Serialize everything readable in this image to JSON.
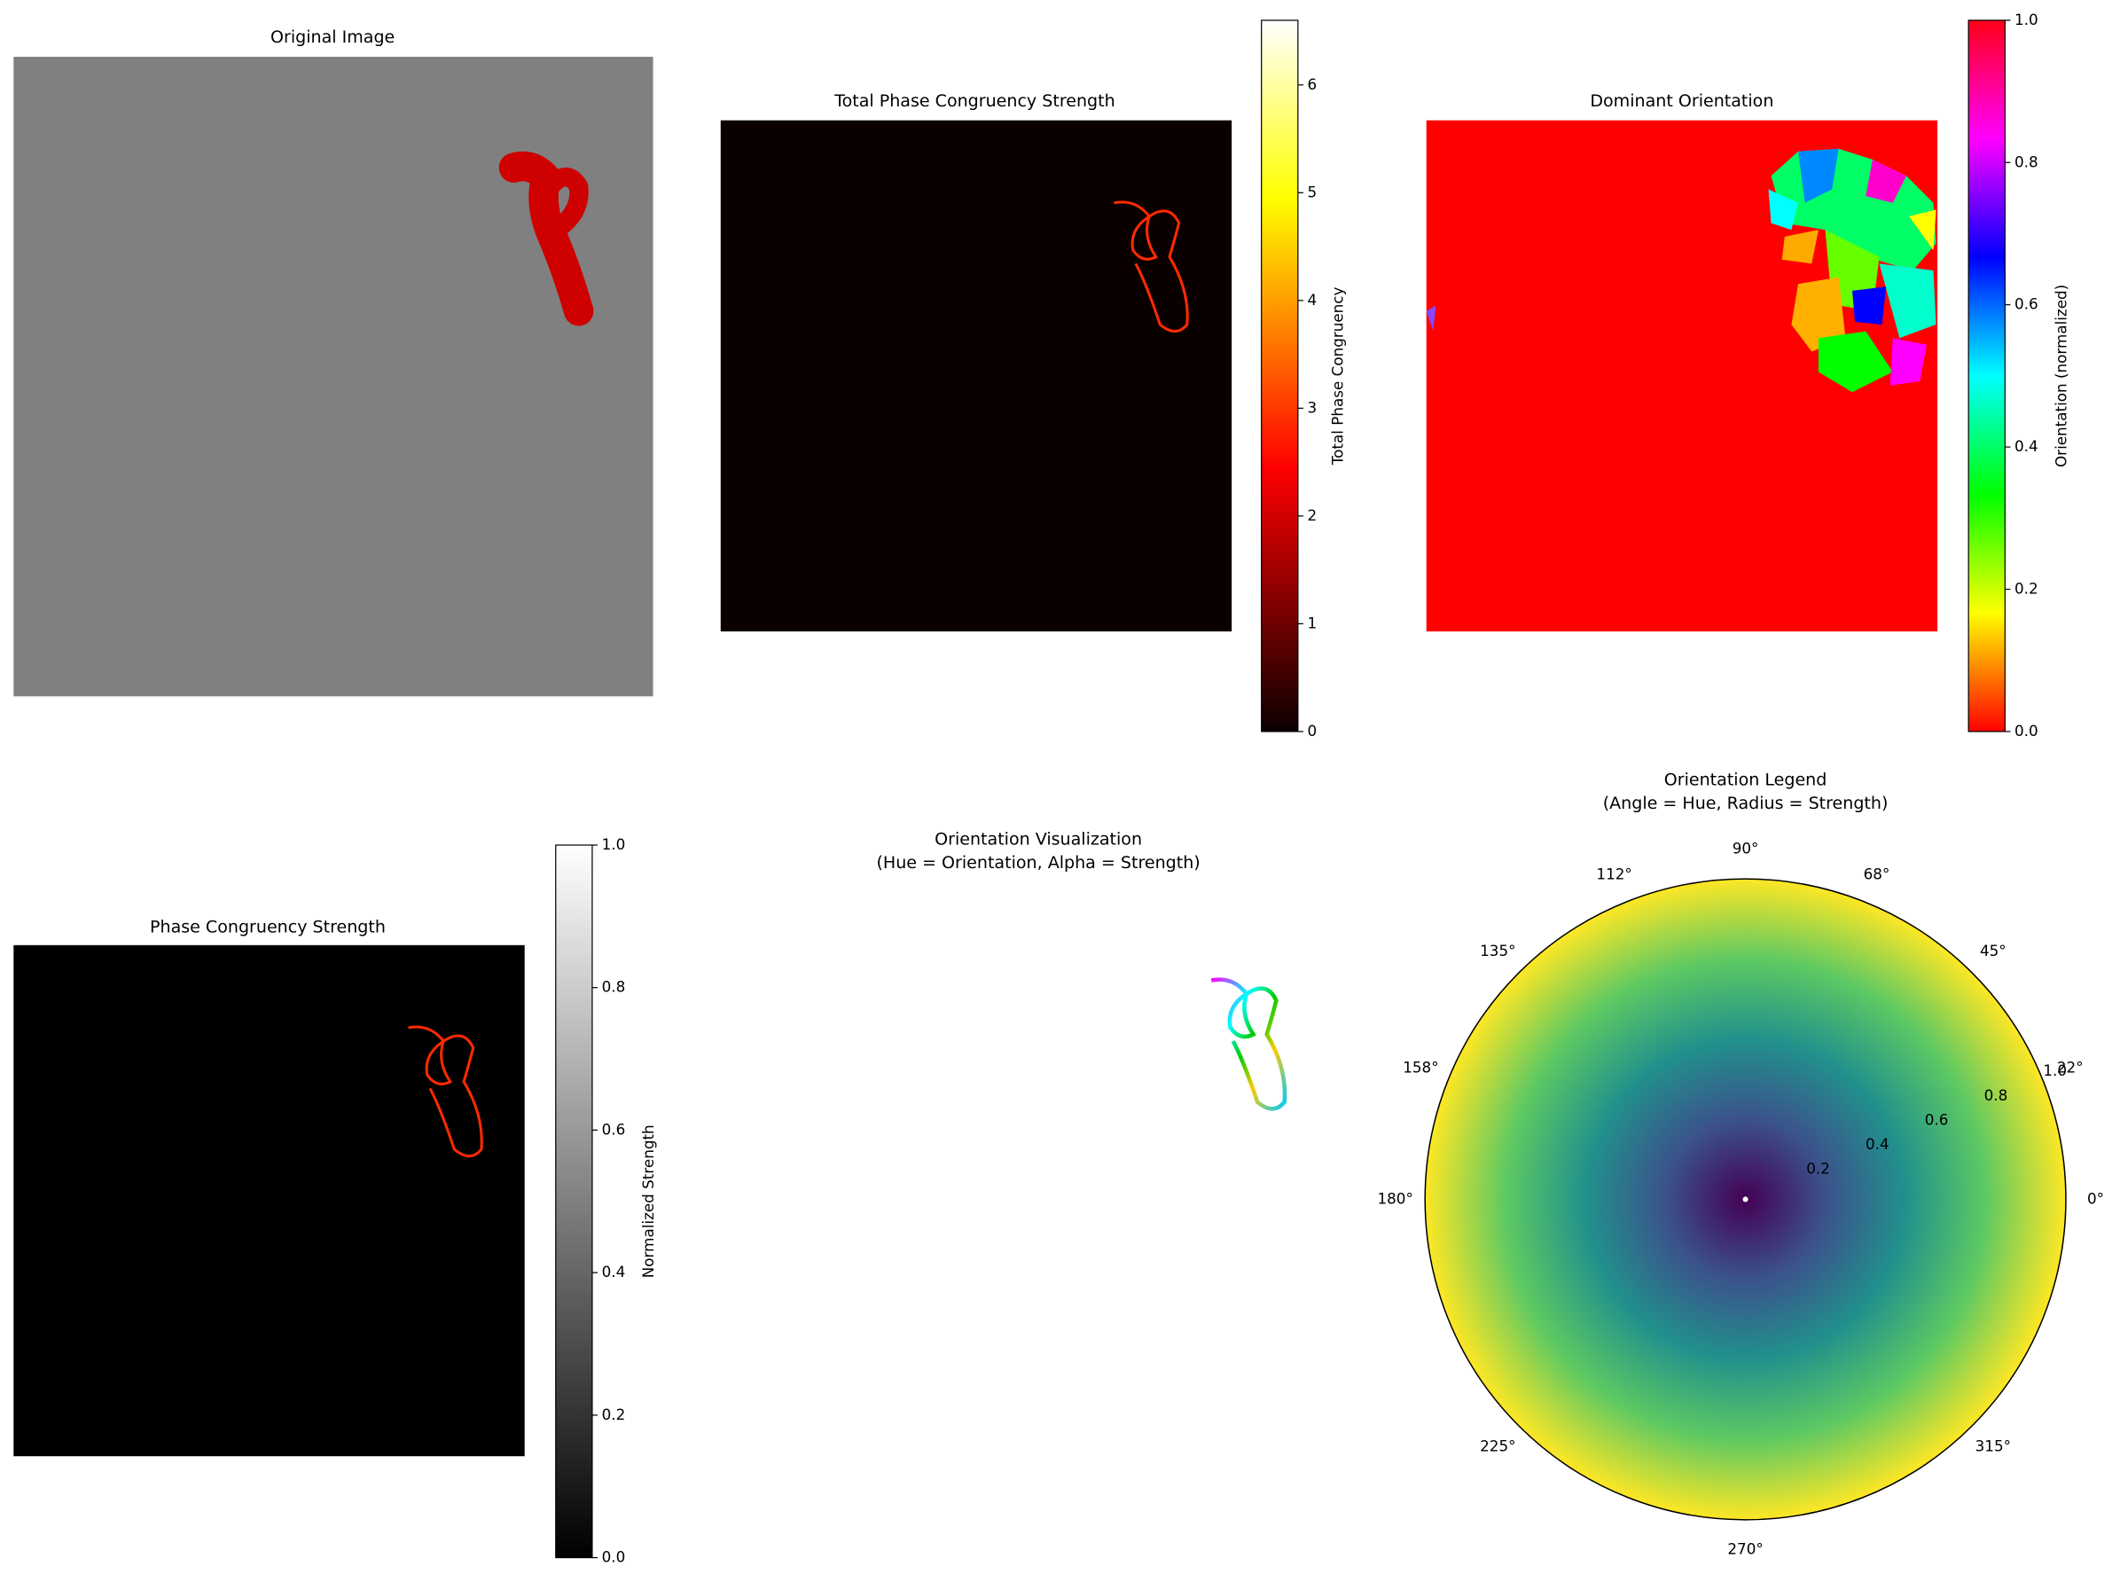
{
  "chart_data": [
    {
      "type": "image",
      "title": [
        "Original Image"
      ]
    },
    {
      "type": "image",
      "title": [
        "Total Phase Congruency Strength"
      ],
      "colorbar": {
        "label": "Total Phase Congruency",
        "cmap": "hot",
        "lim": [
          0,
          6.6
        ],
        "ticks": [
          0,
          1,
          2,
          3,
          4,
          5,
          6
        ]
      }
    },
    {
      "type": "image",
      "title": [
        "Dominant Orientation"
      ],
      "colorbar": {
        "label": "Orientation (normalized)",
        "cmap": "hsv",
        "lim": [
          0,
          1
        ],
        "ticks": [
          {
            "value": 0,
            "label": "0.0"
          },
          {
            "value": 0.2,
            "label": "0.2"
          },
          {
            "value": 0.4,
            "label": "0.4"
          },
          {
            "value": 0.6,
            "label": "0.6"
          },
          {
            "value": 0.8,
            "label": "0.8"
          },
          {
            "value": 1,
            "label": "1.0"
          }
        ]
      }
    },
    {
      "type": "image",
      "title": [
        "Phase Congruency Strength"
      ],
      "colorbar": {
        "label": "Normalized Strength",
        "cmap": "gray",
        "lim": [
          0,
          1
        ],
        "ticks": [
          {
            "value": 0,
            "label": "0.0"
          },
          {
            "value": 0.2,
            "label": "0.2"
          },
          {
            "value": 0.4,
            "label": "0.4"
          },
          {
            "value": 0.6,
            "label": "0.6"
          },
          {
            "value": 0.8,
            "label": "0.8"
          },
          {
            "value": 1,
            "label": "1.0"
          }
        ]
      }
    },
    {
      "type": "image",
      "title": [
        "Orientation Visualization",
        "(Hue = Orientation, Alpha = Strength)"
      ]
    },
    {
      "type": "polar",
      "title": [
        "Orientation Legend",
        "(Angle = Hue, Radius = Strength)"
      ],
      "xticks": [
        {
          "value": 0,
          "label": "0°"
        },
        {
          "value": 22,
          "label": "22°"
        },
        {
          "value": 45,
          "label": "45°"
        },
        {
          "value": 68,
          "label": "68°"
        },
        {
          "value": 90,
          "label": "90°"
        },
        {
          "value": 112,
          "label": "112°"
        },
        {
          "value": 135,
          "label": "135°"
        },
        {
          "value": 158,
          "label": "158°"
        },
        {
          "value": 180,
          "label": "180°"
        },
        {
          "value": 225,
          "label": "225°"
        },
        {
          "value": 270,
          "label": "270°"
        },
        {
          "value": 315,
          "label": "315°"
        }
      ],
      "ylim": [
        0,
        1
      ],
      "yticks": [
        0.2,
        0.4,
        0.6,
        0.8,
        {
          "value": 1,
          "label": "1.0"
        }
      ]
    }
  ]
}
